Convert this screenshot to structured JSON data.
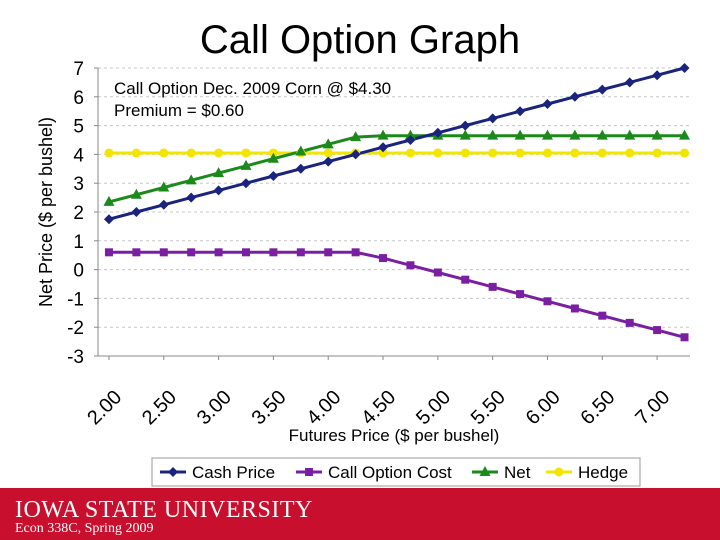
{
  "slide": {
    "title": "Call Option Graph",
    "footer_logo": "IOWA STATE UNIVERSITY",
    "footer_course": "Econ 338C, Spring 2009"
  },
  "chart_data": {
    "type": "line",
    "annotation_lines": [
      "Call Option Dec. 2009 Corn @ $4.30",
      "Premium = $0.60"
    ],
    "xlabel": "Futures Price ($ per bushel)",
    "ylabel": "Net Price ($ per bushel)",
    "ylim": [
      -3,
      7
    ],
    "yticks": [
      "7",
      "6",
      "5",
      "4",
      "3",
      "2",
      "1",
      "0",
      "-1",
      "-2",
      "-3"
    ],
    "xtick_labels": [
      "2.00",
      "2.50",
      "3.00",
      "3.50",
      "4.00",
      "4.50",
      "5.00",
      "5.50",
      "6.00",
      "6.50",
      "7.00"
    ],
    "x": [
      2.0,
      2.25,
      2.5,
      2.75,
      3.0,
      3.25,
      3.5,
      3.75,
      4.0,
      4.25,
      4.5,
      4.75,
      5.0,
      5.25,
      5.5,
      5.75,
      6.0,
      6.25,
      6.5,
      6.75,
      7.0,
      7.25
    ],
    "series": [
      {
        "name": "Cash Price",
        "color": "#1a237e",
        "marker": "diamond",
        "values": [
          1.75,
          2.0,
          2.25,
          2.5,
          2.75,
          3.0,
          3.25,
          3.5,
          3.75,
          4.0,
          4.25,
          4.5,
          4.75,
          5.0,
          5.25,
          5.5,
          5.75,
          6.0,
          6.25,
          6.5,
          6.75,
          7.0
        ]
      },
      {
        "name": "Call Option Cost",
        "color": "#7b1fa2",
        "marker": "square",
        "values": [
          0.6,
          0.6,
          0.6,
          0.6,
          0.6,
          0.6,
          0.6,
          0.6,
          0.6,
          0.6,
          0.4,
          0.15,
          -0.1,
          -0.35,
          -0.6,
          -0.85,
          -1.1,
          -1.35,
          -1.6,
          -1.85,
          -2.1,
          -2.35
        ]
      },
      {
        "name": "Net",
        "color": "#1b8a1b",
        "marker": "triangle",
        "values": [
          2.35,
          2.6,
          2.85,
          3.1,
          3.35,
          3.6,
          3.85,
          4.1,
          4.35,
          4.6,
          4.65,
          4.65,
          4.65,
          4.65,
          4.65,
          4.65,
          4.65,
          4.65,
          4.65,
          4.65,
          4.65,
          4.65
        ]
      },
      {
        "name": "Hedge",
        "color": "#f2e600",
        "marker": "circle",
        "values": [
          4.05,
          4.05,
          4.05,
          4.05,
          4.05,
          4.05,
          4.05,
          4.05,
          4.05,
          4.05,
          4.05,
          4.05,
          4.05,
          4.05,
          4.05,
          4.05,
          4.05,
          4.05,
          4.05,
          4.05,
          4.05,
          4.05
        ]
      }
    ]
  }
}
